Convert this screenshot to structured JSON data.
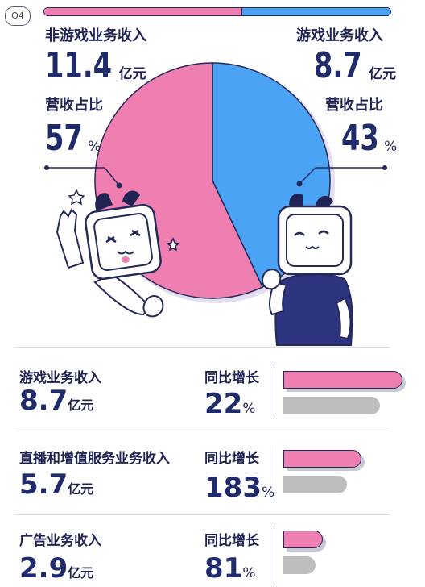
{
  "badge": "Q4",
  "colors": {
    "pink": "#f07fb1",
    "blue": "#4ba3f5",
    "navy": "#1f2b6b",
    "gray": "#bdbdbd",
    "shirt": "#2d3580"
  },
  "left": {
    "label": "非游戏业务收入",
    "value": "11.4",
    "unit": "亿元",
    "share_label": "营收占比",
    "share_value": "57",
    "share_unit": "%"
  },
  "right": {
    "label": "游戏业务收入",
    "value": "8.7",
    "unit": "亿元",
    "share_label": "营收占比",
    "share_value": "43",
    "share_unit": "%"
  },
  "rows": [
    {
      "label": "游戏业务收入",
      "value": "8.7",
      "unit": "亿元",
      "growth_label": "同比增长",
      "growth_value": "22",
      "growth_unit": "%"
    },
    {
      "label": "直播和增值服务业务收入",
      "value": "5.7",
      "unit": "亿元",
      "growth_label": "同比增长",
      "growth_value": "183",
      "growth_unit": "%"
    },
    {
      "label": "广告业务收入",
      "value": "2.9",
      "unit": "亿元",
      "growth_label": "同比增长",
      "growth_value": "81",
      "growth_unit": "%"
    }
  ],
  "chart_data": [
    {
      "type": "pie",
      "slices": [
        {
          "label": "非游戏业务收入",
          "value": 57,
          "color": "#f07fb1"
        },
        {
          "label": "游戏业务收入",
          "value": 43,
          "color": "#4ba3f5"
        }
      ]
    },
    {
      "type": "bar",
      "categories": [
        "游戏业务收入",
        "直播和增值服务业务收入",
        "广告业务收入"
      ],
      "series": [
        {
          "values": [
            8.7,
            5.7,
            2.9
          ]
        },
        {
          "values": [
            22,
            183,
            81
          ]
        }
      ]
    }
  ]
}
